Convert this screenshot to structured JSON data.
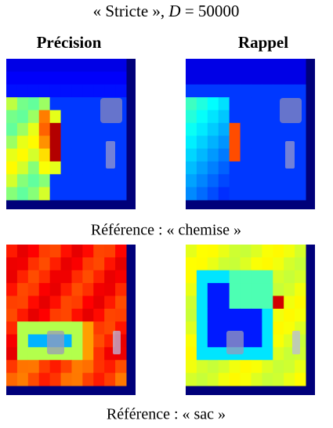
{
  "title": {
    "text": "« Stricte »,",
    "variable": "D",
    "equation": "= 50000"
  },
  "columns": [
    "Précision",
    "Rappel"
  ],
  "captions": [
    "Référence : « chemise »",
    "Référence : « sac »"
  ]
}
